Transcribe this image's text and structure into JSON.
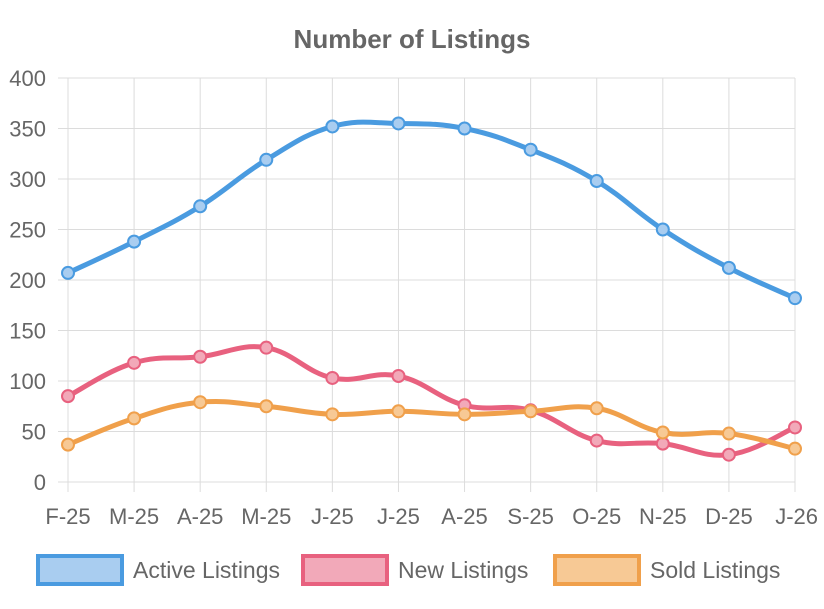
{
  "chart_data": {
    "type": "line",
    "title": "Number of Listings",
    "xlabel": "",
    "ylabel": "",
    "categories": [
      "F-25",
      "M-25",
      "A-25",
      "M-25",
      "J-25",
      "J-25",
      "A-25",
      "S-25",
      "O-25",
      "N-25",
      "D-25",
      "J-26"
    ],
    "ylim": [
      0,
      400
    ],
    "yticks": [
      "0",
      "50",
      "100",
      "150",
      "200",
      "250",
      "300",
      "350",
      "400"
    ],
    "grid": true,
    "legend_position": "bottom",
    "series": [
      {
        "name": "Active Listings",
        "color": "#4a9be0",
        "fill": "#a9cdf0",
        "values": [
          207,
          238,
          273,
          319,
          352,
          355,
          350,
          329,
          298,
          250,
          212,
          182
        ]
      },
      {
        "name": "New Listings",
        "color": "#e8617f",
        "fill": "#f2a9b9",
        "values": [
          85,
          118,
          124,
          133,
          103,
          105,
          76,
          71,
          41,
          38,
          27,
          54
        ]
      },
      {
        "name": "Sold Listings",
        "color": "#f0a04b",
        "fill": "#f7c995",
        "values": [
          37,
          63,
          79,
          75,
          67,
          70,
          67,
          70,
          73,
          49,
          48,
          33
        ]
      }
    ]
  }
}
